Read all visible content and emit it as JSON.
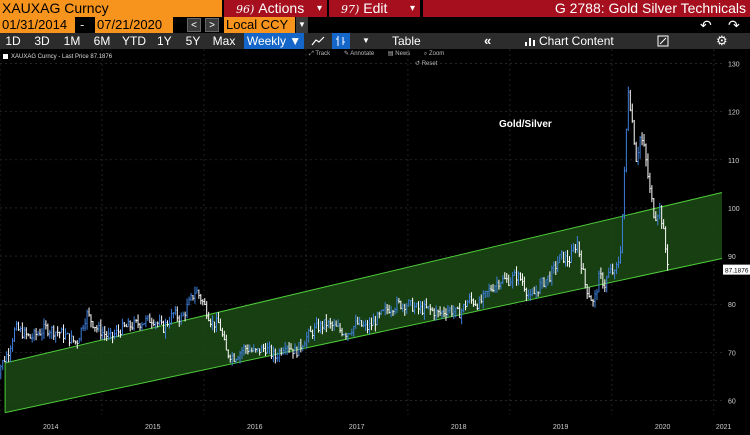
{
  "header": {
    "ticker": "XAUXAG Curncy",
    "actions_num": "96)",
    "actions_label": "Actions",
    "edit_num": "97)",
    "edit_label": "Edit",
    "caret": "▾",
    "title": "G 2788: Gold Silver Technicals"
  },
  "dates": {
    "start": "01/31/2014",
    "end": "07/21/2020",
    "dash": "-",
    "prev": "<",
    "next": ">",
    "currency": "Local CCY"
  },
  "toolbar": {
    "periods": [
      "1D",
      "3D",
      "1M",
      "6M",
      "YTD",
      "1Y",
      "5Y",
      "Max"
    ],
    "frequency": "Weekly ▼",
    "table_label": "Table",
    "chart_content_label": "Chart Content",
    "collapse_label": "«"
  },
  "chart_tools": {
    "track": "Track",
    "annotate": "Annotate",
    "news": "News",
    "zoom": "Zoom",
    "reset": "Reset"
  },
  "chart_data": {
    "type": "line",
    "title": "Gold/Silver",
    "legend": [
      {
        "name": "XAUXAG Curncy - Last Price 87.1876",
        "color": "#ffffff"
      }
    ],
    "last_price": 87.1876,
    "last_price_label": "87.1876",
    "x_ticks": [
      "2014",
      "2015",
      "2016",
      "2017",
      "2018",
      "2019",
      "2020",
      "2021"
    ],
    "y_ticks": [
      60,
      70,
      80,
      90,
      100,
      110,
      120,
      130
    ],
    "ylim": [
      57,
      133
    ],
    "xlim": [
      2014.0,
      2021.08
    ],
    "grid": true,
    "series": [
      {
        "name": "XAUXAG Curncy - Last Price",
        "color": "#4a8fe0",
        "x": [
          2013.95,
          2014.08,
          2014.15,
          2014.3,
          2014.45,
          2014.6,
          2014.75,
          2014.85,
          2014.95,
          2015.08,
          2015.2,
          2015.35,
          2015.5,
          2015.6,
          2015.7,
          2015.78,
          2015.85,
          2015.92,
          2016.0,
          2016.08,
          2016.15,
          2016.22,
          2016.3,
          2016.4,
          2016.5,
          2016.6,
          2016.7,
          2016.8,
          2016.9,
          2017.0,
          2017.1,
          2017.2,
          2017.3,
          2017.4,
          2017.5,
          2017.6,
          2017.7,
          2017.8,
          2017.9,
          2018.0,
          2018.1,
          2018.2,
          2018.3,
          2018.4,
          2018.5,
          2018.6,
          2018.7,
          2018.8,
          2018.9,
          2019.0,
          2019.06,
          2019.12,
          2019.2,
          2019.3,
          2019.4,
          2019.5,
          2019.58,
          2019.66,
          2019.74,
          2019.82,
          2019.88,
          2019.93,
          2019.96,
          2020.0,
          2020.03,
          2020.05,
          2020.08,
          2020.1,
          2020.13,
          2020.16,
          2020.2,
          2020.24,
          2020.28,
          2020.32,
          2020.37,
          2020.42,
          2020.47,
          2020.5,
          2020.53,
          2020.56
        ],
        "values": [
          65,
          70,
          75,
          73,
          75,
          74,
          72,
          78,
          75,
          73,
          75,
          76,
          77,
          75,
          78,
          77,
          80,
          83,
          80,
          76,
          76,
          70,
          69,
          71,
          70,
          71,
          69,
          72,
          70,
          73,
          75,
          76,
          75,
          74,
          76,
          75,
          77,
          79,
          80,
          80,
          79,
          79,
          78,
          79,
          78,
          81,
          80,
          83,
          85,
          85,
          86,
          85,
          81,
          84,
          86,
          90,
          89,
          93,
          84,
          80,
          86,
          84,
          86,
          87,
          86,
          88,
          90,
          97,
          110,
          125,
          118,
          110,
          115,
          112,
          104,
          98,
          100,
          96,
          91,
          87.19
        ]
      }
    ],
    "channel": {
      "color": "#1e7a1e",
      "lower": {
        "x": [
          2014.05,
          2021.08
        ],
        "y": [
          57.5,
          89.5
        ]
      },
      "upper": {
        "x": [
          2014.05,
          2021.08
        ],
        "y": [
          67.8,
          103.2
        ]
      }
    }
  }
}
